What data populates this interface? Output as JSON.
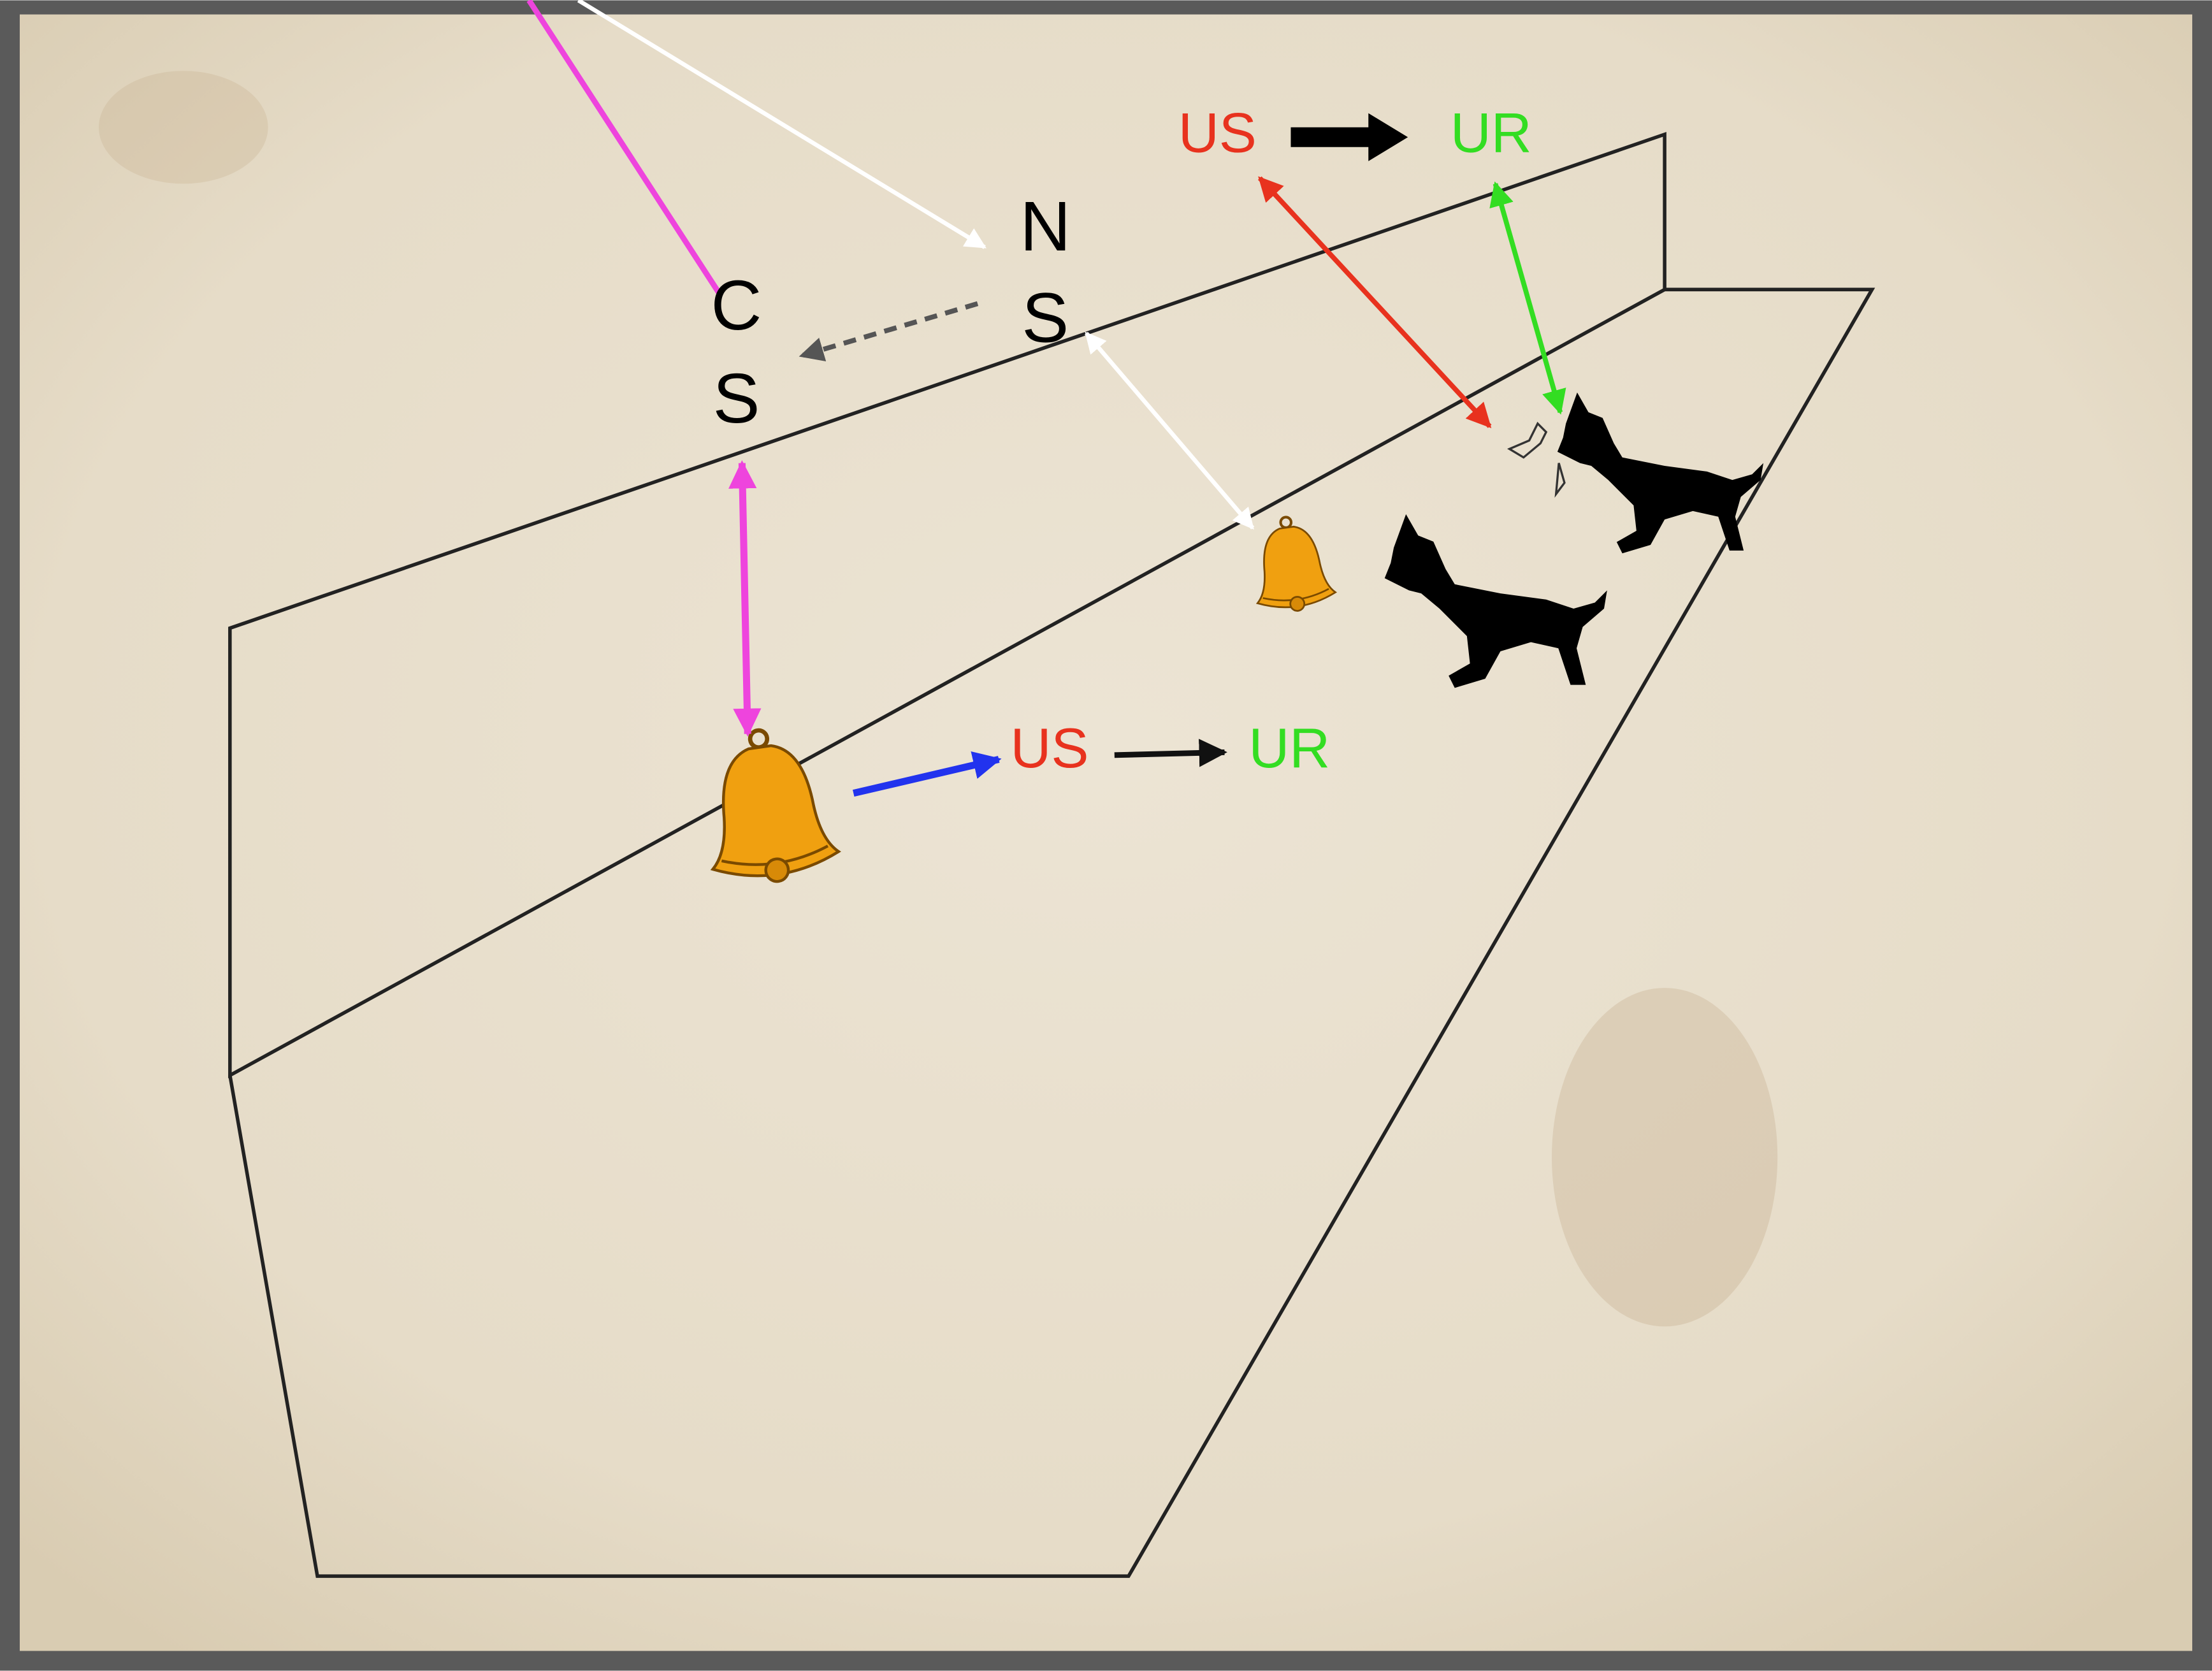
{
  "top_pair": {
    "us": "US",
    "ur": "UR"
  },
  "neutral_stimulus": {
    "line1": "N",
    "line2": "S"
  },
  "conditioned_stimulus": {
    "line1": "C",
    "line2": "S"
  },
  "bottom_pair": {
    "us": "US",
    "ur": "UR"
  }
}
